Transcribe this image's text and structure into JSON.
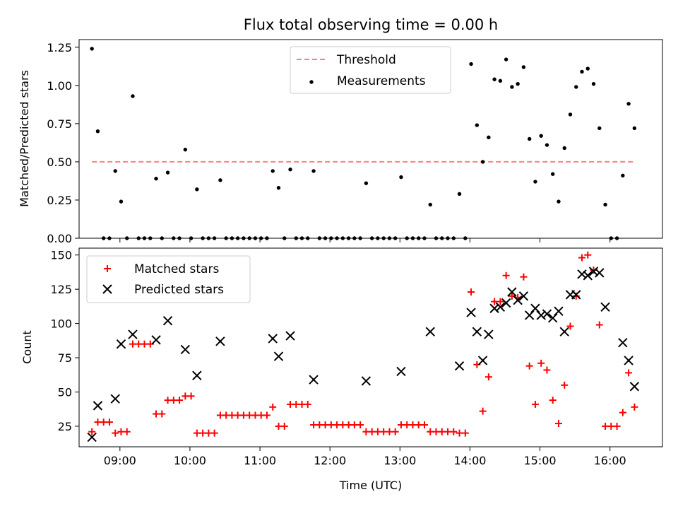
{
  "title": "Flux total observing time = 0.00 h",
  "xlabel": "Time (UTC)",
  "x_ticks": [
    "09:00",
    "10:00",
    "11:00",
    "12:00",
    "13:00",
    "14:00",
    "15:00",
    "16:00"
  ],
  "colors": {
    "threshold": "#ff7f7f",
    "measurements": "#000000",
    "matched": "#ff0000",
    "predicted": "#000000"
  },
  "chart_data": [
    {
      "type": "scatter",
      "panel": "top",
      "ylabel": "Matched/Predicted stars",
      "xlim": [
        "08:25",
        "16:45"
      ],
      "ylim": [
        0,
        1.3
      ],
      "y_ticks": [
        "0.00",
        "0.25",
        "0.50",
        "0.75",
        "1.00",
        "1.25"
      ],
      "legend": {
        "placement": "upper-center",
        "entries": [
          "Threshold",
          "Measurements"
        ]
      },
      "threshold": {
        "name": "Threshold",
        "style": "dashed",
        "y": 0.5,
        "x_range": [
          "08:36",
          "16:21"
        ]
      },
      "series": [
        {
          "name": "Measurements",
          "marker": "dot",
          "points": [
            [
              "08:36",
              1.24
            ],
            [
              "08:41",
              0.7
            ],
            [
              "08:46",
              0.0
            ],
            [
              "08:51",
              0.0
            ],
            [
              "08:56",
              0.44
            ],
            [
              "09:01",
              0.24
            ],
            [
              "09:06",
              0.0
            ],
            [
              "09:11",
              0.93
            ],
            [
              "09:16",
              0.0
            ],
            [
              "09:21",
              0.0
            ],
            [
              "09:26",
              0.0
            ],
            [
              "09:31",
              0.39
            ],
            [
              "09:36",
              0.0
            ],
            [
              "09:41",
              0.43
            ],
            [
              "09:46",
              0.0
            ],
            [
              "09:51",
              0.0
            ],
            [
              "09:56",
              0.58
            ],
            [
              "10:01",
              0.0
            ],
            [
              "10:06",
              0.32
            ],
            [
              "10:11",
              0.0
            ],
            [
              "10:16",
              0.0
            ],
            [
              "10:21",
              0.0
            ],
            [
              "10:26",
              0.38
            ],
            [
              "10:31",
              0.0
            ],
            [
              "10:36",
              0.0
            ],
            [
              "10:41",
              0.0
            ],
            [
              "10:46",
              0.0
            ],
            [
              "10:51",
              0.0
            ],
            [
              "10:56",
              0.0
            ],
            [
              "11:01",
              0.0
            ],
            [
              "11:06",
              0.0
            ],
            [
              "11:11",
              0.44
            ],
            [
              "11:16",
              0.33
            ],
            [
              "11:21",
              0.0
            ],
            [
              "11:26",
              0.45
            ],
            [
              "11:31",
              0.0
            ],
            [
              "11:36",
              0.0
            ],
            [
              "11:41",
              0.0
            ],
            [
              "11:46",
              0.44
            ],
            [
              "11:51",
              0.0
            ],
            [
              "11:56",
              0.0
            ],
            [
              "12:01",
              0.0
            ],
            [
              "12:06",
              0.0
            ],
            [
              "12:11",
              0.0
            ],
            [
              "12:16",
              0.0
            ],
            [
              "12:21",
              0.0
            ],
            [
              "12:26",
              0.0
            ],
            [
              "12:31",
              0.36
            ],
            [
              "12:36",
              0.0
            ],
            [
              "12:41",
              0.0
            ],
            [
              "12:46",
              0.0
            ],
            [
              "12:51",
              0.0
            ],
            [
              "12:56",
              0.0
            ],
            [
              "13:01",
              0.4
            ],
            [
              "13:06",
              0.0
            ],
            [
              "13:11",
              0.0
            ],
            [
              "13:16",
              0.0
            ],
            [
              "13:21",
              0.0
            ],
            [
              "13:26",
              0.22
            ],
            [
              "13:31",
              0.0
            ],
            [
              "13:36",
              0.0
            ],
            [
              "13:41",
              0.0
            ],
            [
              "13:46",
              0.0
            ],
            [
              "13:51",
              0.29
            ],
            [
              "13:56",
              0.0
            ],
            [
              "14:01",
              1.14
            ],
            [
              "14:06",
              0.74
            ],
            [
              "14:11",
              0.5
            ],
            [
              "14:16",
              0.66
            ],
            [
              "14:21",
              1.04
            ],
            [
              "14:26",
              1.03
            ],
            [
              "14:31",
              1.17
            ],
            [
              "14:36",
              0.99
            ],
            [
              "14:41",
              1.01
            ],
            [
              "14:46",
              1.12
            ],
            [
              "14:51",
              0.65
            ],
            [
              "14:56",
              0.37
            ],
            [
              "15:01",
              0.67
            ],
            [
              "15:06",
              0.61
            ],
            [
              "15:11",
              0.42
            ],
            [
              "15:16",
              0.24
            ],
            [
              "15:21",
              0.59
            ],
            [
              "15:26",
              0.81
            ],
            [
              "15:31",
              0.99
            ],
            [
              "15:36",
              1.09
            ],
            [
              "15:41",
              1.11
            ],
            [
              "15:46",
              1.01
            ],
            [
              "15:51",
              0.72
            ],
            [
              "15:56",
              0.22
            ],
            [
              "16:01",
              0.0
            ],
            [
              "16:06",
              0.0
            ],
            [
              "16:11",
              0.41
            ],
            [
              "16:16",
              0.88
            ],
            [
              "16:21",
              0.72
            ]
          ]
        }
      ]
    },
    {
      "type": "scatter",
      "panel": "bottom",
      "ylabel": "Count",
      "xlim": [
        "08:25",
        "16:45"
      ],
      "ylim": [
        10,
        155
      ],
      "y_ticks": [
        "25",
        "50",
        "75",
        "100",
        "125",
        "150"
      ],
      "legend": {
        "placement": "upper-left",
        "entries": [
          "Matched stars",
          "Predicted stars"
        ]
      },
      "series": [
        {
          "name": "Matched stars",
          "marker": "plus",
          "points": [
            [
              "08:36",
              21
            ],
            [
              "08:41",
              28
            ],
            [
              "08:46",
              28
            ],
            [
              "08:51",
              28
            ],
            [
              "08:56",
              20
            ],
            [
              "09:01",
              21
            ],
            [
              "09:06",
              21
            ],
            [
              "09:11",
              85
            ],
            [
              "09:16",
              85
            ],
            [
              "09:21",
              85
            ],
            [
              "09:26",
              85
            ],
            [
              "09:31",
              34
            ],
            [
              "09:36",
              34
            ],
            [
              "09:41",
              44
            ],
            [
              "09:46",
              44
            ],
            [
              "09:51",
              44
            ],
            [
              "09:56",
              47
            ],
            [
              "10:01",
              47
            ],
            [
              "10:06",
              20
            ],
            [
              "10:11",
              20
            ],
            [
              "10:16",
              20
            ],
            [
              "10:21",
              20
            ],
            [
              "10:26",
              33
            ],
            [
              "10:31",
              33
            ],
            [
              "10:36",
              33
            ],
            [
              "10:41",
              33
            ],
            [
              "10:46",
              33
            ],
            [
              "10:51",
              33
            ],
            [
              "10:56",
              33
            ],
            [
              "11:01",
              33
            ],
            [
              "11:06",
              33
            ],
            [
              "11:11",
              39
            ],
            [
              "11:16",
              25
            ],
            [
              "11:21",
              25
            ],
            [
              "11:26",
              41
            ],
            [
              "11:31",
              41
            ],
            [
              "11:36",
              41
            ],
            [
              "11:41",
              41
            ],
            [
              "11:46",
              26
            ],
            [
              "11:51",
              26
            ],
            [
              "11:56",
              26
            ],
            [
              "12:01",
              26
            ],
            [
              "12:06",
              26
            ],
            [
              "12:11",
              26
            ],
            [
              "12:16",
              26
            ],
            [
              "12:21",
              26
            ],
            [
              "12:26",
              26
            ],
            [
              "12:31",
              21
            ],
            [
              "12:36",
              21
            ],
            [
              "12:41",
              21
            ],
            [
              "12:46",
              21
            ],
            [
              "12:51",
              21
            ],
            [
              "12:56",
              21
            ],
            [
              "13:01",
              26
            ],
            [
              "13:06",
              26
            ],
            [
              "13:11",
              26
            ],
            [
              "13:16",
              26
            ],
            [
              "13:21",
              26
            ],
            [
              "13:26",
              21
            ],
            [
              "13:31",
              21
            ],
            [
              "13:36",
              21
            ],
            [
              "13:41",
              21
            ],
            [
              "13:46",
              21
            ],
            [
              "13:51",
              20
            ],
            [
              "13:56",
              20
            ],
            [
              "14:01",
              123
            ],
            [
              "14:06",
              70
            ],
            [
              "14:11",
              36
            ],
            [
              "14:16",
              61
            ],
            [
              "14:21",
              116
            ],
            [
              "14:26",
              116
            ],
            [
              "14:31",
              135
            ],
            [
              "14:36",
              120
            ],
            [
              "14:41",
              119
            ],
            [
              "14:46",
              134
            ],
            [
              "14:51",
              69
            ],
            [
              "14:56",
              41
            ],
            [
              "15:01",
              71
            ],
            [
              "15:06",
              66
            ],
            [
              "15:11",
              44
            ],
            [
              "15:16",
              27
            ],
            [
              "15:21",
              55
            ],
            [
              "15:26",
              98
            ],
            [
              "15:31",
              120
            ],
            [
              "15:36",
              148
            ],
            [
              "15:41",
              150
            ],
            [
              "15:46",
              139
            ],
            [
              "15:51",
              99
            ],
            [
              "15:56",
              25
            ],
            [
              "16:01",
              25
            ],
            [
              "16:06",
              25
            ],
            [
              "16:11",
              35
            ],
            [
              "16:16",
              64
            ],
            [
              "16:21",
              39
            ]
          ]
        },
        {
          "name": "Predicted stars",
          "marker": "x",
          "points": [
            [
              "08:36",
              17
            ],
            [
              "08:41",
              40
            ],
            [
              "08:56",
              45
            ],
            [
              "09:01",
              85
            ],
            [
              "09:11",
              92
            ],
            [
              "09:31",
              88
            ],
            [
              "09:41",
              102
            ],
            [
              "09:56",
              81
            ],
            [
              "10:06",
              62
            ],
            [
              "10:26",
              87
            ],
            [
              "11:11",
              89
            ],
            [
              "11:16",
              76
            ],
            [
              "11:26",
              91
            ],
            [
              "11:46",
              59
            ],
            [
              "12:31",
              58
            ],
            [
              "13:01",
              65
            ],
            [
              "13:26",
              94
            ],
            [
              "13:51",
              69
            ],
            [
              "14:01",
              108
            ],
            [
              "14:06",
              94
            ],
            [
              "14:11",
              73
            ],
            [
              "14:16",
              92
            ],
            [
              "14:21",
              111
            ],
            [
              "14:26",
              112
            ],
            [
              "14:31",
              115
            ],
            [
              "14:36",
              123
            ],
            [
              "14:41",
              117
            ],
            [
              "14:46",
              120
            ],
            [
              "14:51",
              106
            ],
            [
              "14:56",
              111
            ],
            [
              "15:01",
              106
            ],
            [
              "15:06",
              107
            ],
            [
              "15:11",
              104
            ],
            [
              "15:16",
              109
            ],
            [
              "15:21",
              94
            ],
            [
              "15:26",
              121
            ],
            [
              "15:31",
              121
            ],
            [
              "15:36",
              136
            ],
            [
              "15:41",
              135
            ],
            [
              "15:46",
              138
            ],
            [
              "15:51",
              137
            ],
            [
              "15:56",
              112
            ],
            [
              "16:11",
              86
            ],
            [
              "16:16",
              73
            ],
            [
              "16:21",
              54
            ]
          ]
        }
      ]
    }
  ]
}
